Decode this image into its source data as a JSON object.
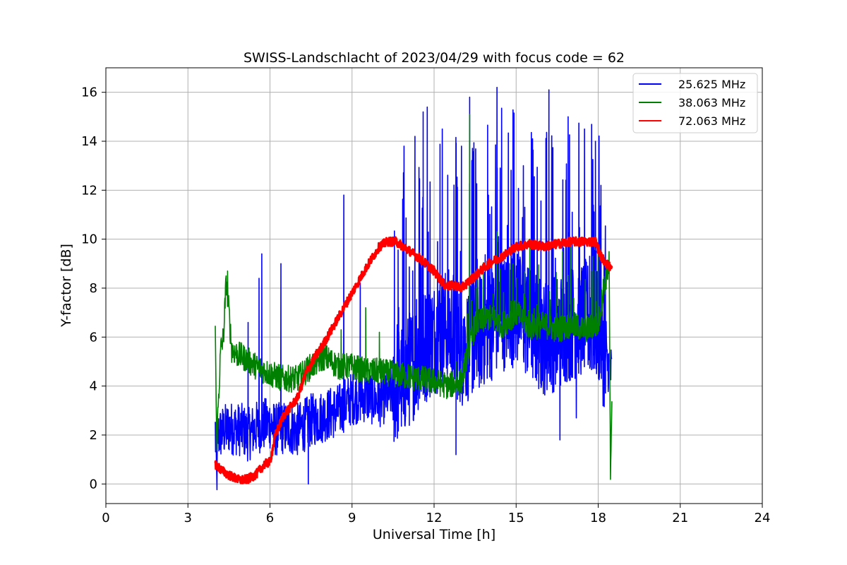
{
  "chart_data": {
    "type": "line",
    "title": "SWISS-Landschlacht of 2023/04/29 with focus code = 62",
    "xlabel": "Universal Time [h]",
    "ylabel": "Y-factor [dB]",
    "xlim": [
      0,
      24
    ],
    "ylim": [
      -0.8,
      17
    ],
    "xticks": [
      0,
      3,
      6,
      9,
      12,
      15,
      18,
      21,
      24
    ],
    "yticks": [
      0,
      2,
      4,
      6,
      8,
      10,
      12,
      14,
      16
    ],
    "grid": true,
    "legend_position": "top-right",
    "series": [
      {
        "name": "25.625 MHz",
        "color": "#0000ff",
        "x": [
          4.0,
          4.05,
          4.1,
          4.5,
          5.0,
          5.2,
          5.5,
          6.0,
          6.2,
          6.5,
          7.0,
          7.5,
          8.0,
          8.5,
          8.7,
          9.0,
          9.5,
          10.0,
          10.5,
          11.0,
          11.5,
          12.0,
          12.5,
          13.0,
          13.5,
          14.0,
          14.5,
          15.0,
          15.5,
          16.0,
          16.5,
          17.0,
          17.5,
          18.0,
          18.3,
          18.5
        ],
        "y": [
          2.2,
          0.0,
          2.0,
          2.3,
          2.2,
          2.0,
          2.3,
          2.5,
          2.2,
          2.3,
          2.2,
          2.6,
          2.8,
          3.0,
          3.2,
          3.5,
          3.6,
          3.4,
          3.8,
          4.5,
          5.5,
          6.0,
          6.5,
          5.5,
          6.0,
          6.5,
          7.0,
          7.2,
          6.5,
          6.0,
          6.2,
          6.6,
          6.8,
          6.5,
          5.0,
          4.5
        ],
        "spikes": [
          [
            4.02,
            2.5
          ],
          [
            5.2,
            6.6
          ],
          [
            5.6,
            8.4
          ],
          [
            5.7,
            9.4
          ],
          [
            6.4,
            9.0
          ],
          [
            8.7,
            11.8
          ],
          [
            9.3,
            8.2
          ],
          [
            10.9,
            13.8
          ],
          [
            11.3,
            14.2
          ],
          [
            11.6,
            15.2
          ],
          [
            11.75,
            15.4
          ],
          [
            12.3,
            14.5
          ],
          [
            13.0,
            13.8
          ],
          [
            13.3,
            15.8
          ],
          [
            14.3,
            16.2
          ],
          [
            14.9,
            14.5
          ],
          [
            15.6,
            14.1
          ],
          [
            16.2,
            16.1
          ],
          [
            16.9,
            15.0
          ],
          [
            17.5,
            14.5
          ],
          [
            17.9,
            14.0
          ],
          [
            18.1,
            12.2
          ],
          [
            7.4,
            0.0
          ],
          [
            12.8,
            1.2
          ],
          [
            16.6,
            1.8
          ],
          [
            17.2,
            2.7
          ]
        ]
      },
      {
        "name": "38.063 MHz",
        "color": "#008000",
        "x": [
          4.0,
          4.05,
          4.1,
          4.2,
          4.3,
          4.4,
          4.5,
          4.6,
          4.8,
          5.0,
          5.5,
          6.0,
          6.5,
          7.0,
          7.5,
          8.0,
          8.5,
          9.0,
          9.5,
          10.0,
          10.5,
          11.0,
          11.5,
          12.0,
          12.5,
          13.0,
          13.2,
          13.5,
          14.0,
          14.5,
          15.0,
          15.5,
          16.0,
          16.5,
          17.0,
          17.5,
          18.0,
          18.2,
          18.4,
          18.45,
          18.5
        ],
        "y": [
          6.5,
          1.5,
          3.0,
          5.5,
          6.0,
          8.3,
          7.0,
          5.5,
          5.3,
          5.2,
          4.8,
          4.5,
          4.3,
          4.3,
          4.8,
          5.2,
          4.8,
          4.8,
          4.6,
          4.6,
          4.5,
          4.4,
          4.3,
          4.2,
          4.0,
          4.2,
          5.2,
          6.5,
          6.8,
          6.5,
          7.0,
          6.4,
          6.5,
          6.3,
          6.5,
          6.3,
          6.5,
          8.0,
          9.0,
          0.0,
          3.0
        ],
        "spikes": [
          [
            4.45,
            8.7
          ],
          [
            8.6,
            6.3
          ],
          [
            9.5,
            7.2
          ],
          [
            10.0,
            6.2
          ],
          [
            12.8,
            5.0
          ],
          [
            13.3,
            15.1
          ],
          [
            14.3,
            10.3
          ],
          [
            15.5,
            10.0
          ],
          [
            16.7,
            9.5
          ],
          [
            17.0,
            9.9
          ],
          [
            17.8,
            9.3
          ],
          [
            18.0,
            9.8
          ]
        ]
      },
      {
        "name": "72.063 MHz",
        "color": "#ff0000",
        "x": [
          4.0,
          4.3,
          4.6,
          4.9,
          5.2,
          5.5,
          5.8,
          6.0,
          6.2,
          6.5,
          7.0,
          7.3,
          7.6,
          8.0,
          8.5,
          9.0,
          9.5,
          10.0,
          10.3,
          10.6,
          11.0,
          11.5,
          12.0,
          12.4,
          12.8,
          13.0,
          13.3,
          13.7,
          14.0,
          14.5,
          15.0,
          15.5,
          16.0,
          16.5,
          17.0,
          17.5,
          17.9,
          18.1,
          18.3,
          18.5
        ],
        "y": [
          0.8,
          0.5,
          0.3,
          0.15,
          0.2,
          0.4,
          0.8,
          0.9,
          2.0,
          2.8,
          3.5,
          4.5,
          5.1,
          5.8,
          6.8,
          7.8,
          8.8,
          9.7,
          9.9,
          9.9,
          9.6,
          9.2,
          8.7,
          8.1,
          8.1,
          8.0,
          8.3,
          8.7,
          9.0,
          9.3,
          9.7,
          9.8,
          9.7,
          9.8,
          9.9,
          9.9,
          9.9,
          9.3,
          9.0,
          8.8
        ],
        "spikes": []
      }
    ]
  }
}
